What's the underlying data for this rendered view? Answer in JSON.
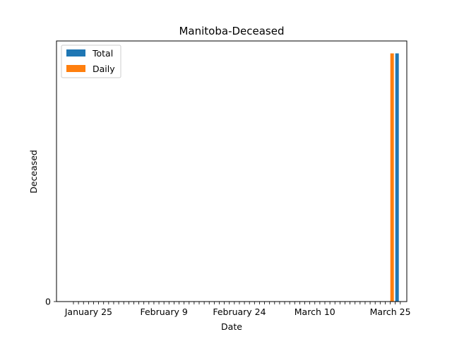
{
  "chart_data": {
    "type": "bar",
    "title": "Manitoba-Deceased",
    "xlabel": "Date",
    "ylabel": "Deceased",
    "x_tick_labels": [
      "January 25",
      "February 9",
      "February 24",
      "March 10",
      "March 25"
    ],
    "y_tick_labels": [
      "0"
    ],
    "legend": {
      "placement": "top-left",
      "entries": [
        "Total",
        "Daily"
      ]
    },
    "colors": {
      "Total": "#1f77b4",
      "Daily": "#ff7f0e"
    },
    "grid": false,
    "dates": {
      "first": "January 22",
      "last": "March 27",
      "bar_date": "March 26"
    },
    "series": [
      {
        "name": "Total",
        "values": [
          1
        ]
      },
      {
        "name": "Daily",
        "values": [
          1
        ]
      }
    ],
    "ylim": [
      0,
      1.05
    ]
  }
}
